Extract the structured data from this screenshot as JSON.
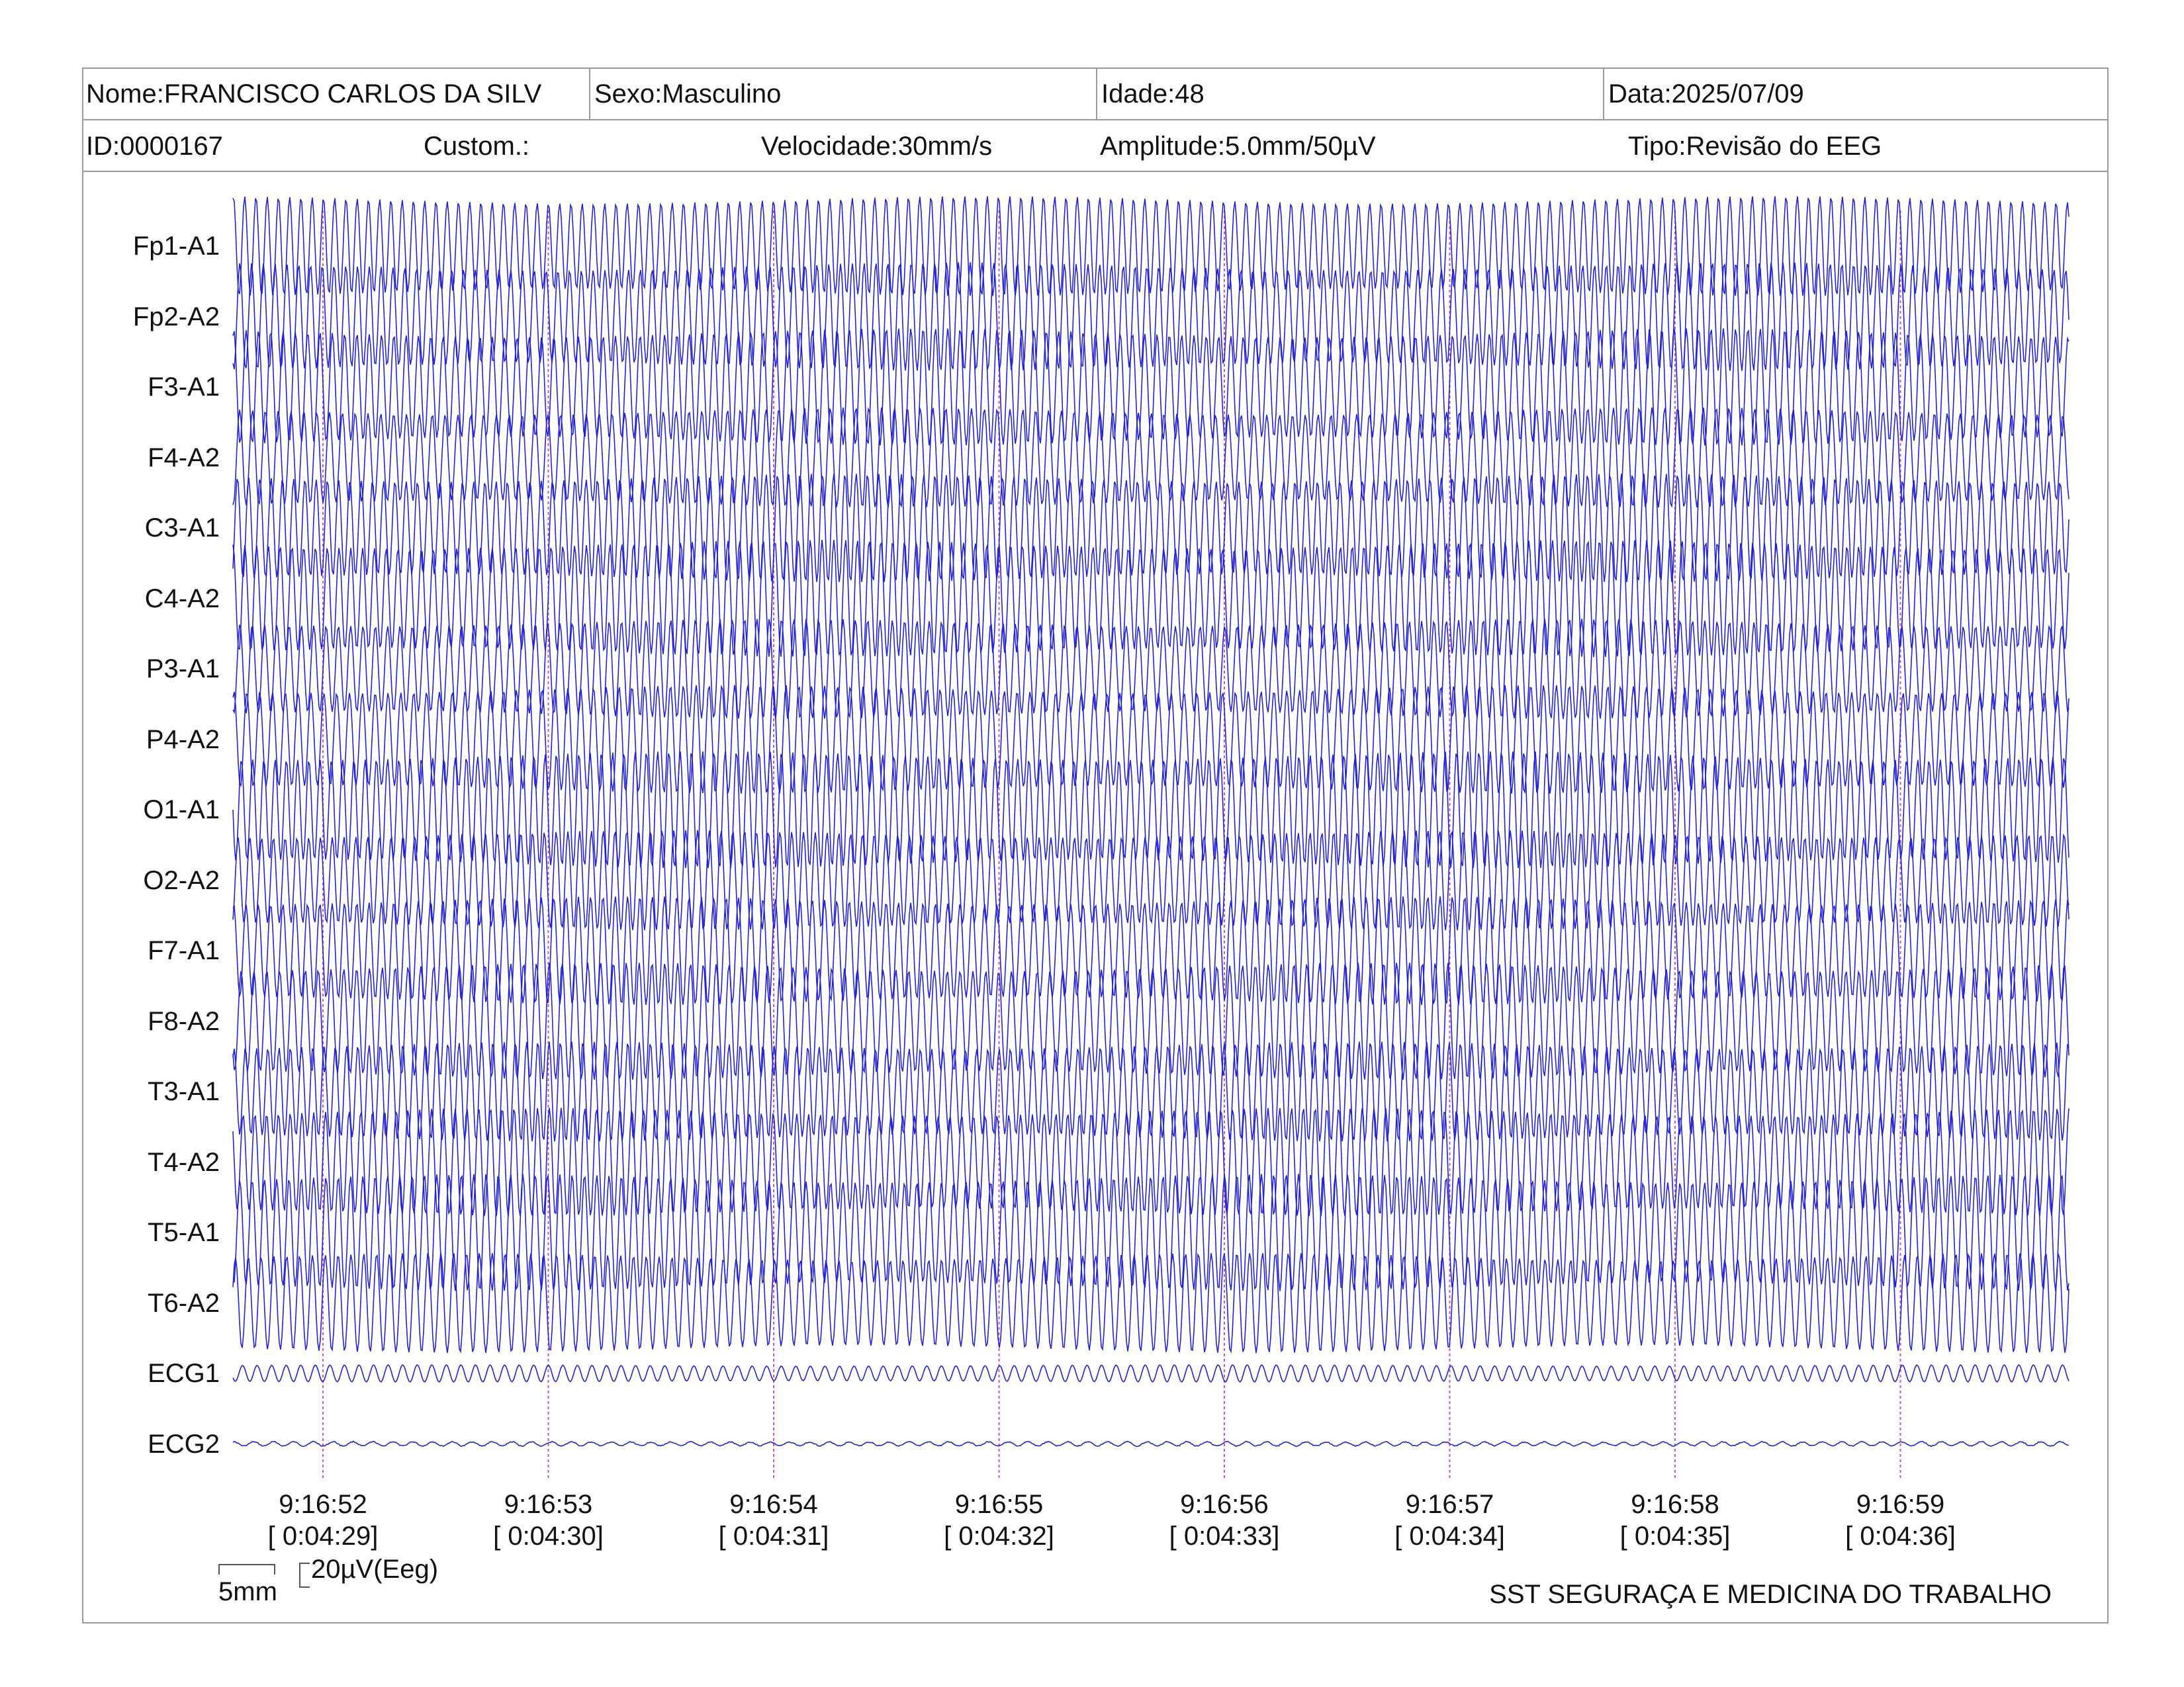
{
  "header": {
    "nome": "Nome:FRANCISCO CARLOS DA SILV",
    "sexo": "Sexo:Masculino",
    "idade": "Idade:48",
    "data": "Data:2025/07/09",
    "id": "ID:0000167",
    "custom": "Custom.:",
    "velocidade": "Velocidade:30mm/s",
    "amplitude": "Amplitude:5.0mm/50µV",
    "tipo": "Tipo:Revisão do EEG"
  },
  "scale": {
    "time_label": "5mm",
    "amplitude_label": "20µV(Eeg)"
  },
  "footer": {
    "company": "SST SEGURAÇA E MEDICINA DO TRABALHO"
  },
  "colors": {
    "trace": "#2323d6",
    "time_marker": "#d24bd6",
    "border": "#9a9a9a"
  },
  "chart_data": {
    "type": "line",
    "title": "",
    "channels": [
      "Fp1-A1",
      "Fp2-A2",
      "F3-A1",
      "F4-A2",
      "C3-A1",
      "C4-A2",
      "P3-A1",
      "P4-A2",
      "O1-A1",
      "O2-A2",
      "F7-A1",
      "F8-A2",
      "T3-A1",
      "T4-A2",
      "T5-A1",
      "T6-A2",
      "ECG1",
      "ECG2"
    ],
    "time_marks": [
      "9:16:52",
      "9:16:53",
      "9:16:54",
      "9:16:55",
      "9:16:56",
      "9:16:57",
      "9:16:58",
      "9:16:59"
    ],
    "elapsed_marks": [
      "[ 0:04:29]",
      "[ 0:04:30]",
      "[ 0:04:31]",
      "[ 0:04:32]",
      "[ 0:04:33]",
      "[ 0:04:34]",
      "[ 0:04:35]",
      "[ 0:04:36]"
    ],
    "xlabel": "",
    "ylabel": "",
    "grid": false
  }
}
